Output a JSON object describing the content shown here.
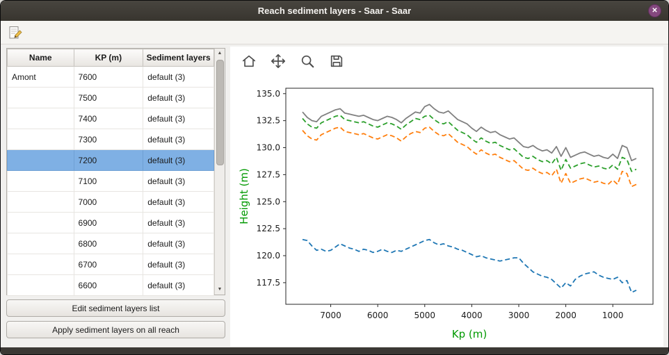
{
  "window": {
    "title": "Reach sediment layers - Saar - Saar",
    "close_glyph": "✕"
  },
  "app_toolbar": {
    "icons": [
      "edit-note-icon"
    ]
  },
  "table": {
    "columns": [
      "Name",
      "KP (m)",
      "Sediment layers"
    ],
    "rows": [
      {
        "name": "Amont",
        "kp": "7600",
        "layers": "default (3)",
        "selected": false
      },
      {
        "name": "",
        "kp": "7500",
        "layers": "default (3)",
        "selected": false
      },
      {
        "name": "",
        "kp": "7400",
        "layers": "default (3)",
        "selected": false
      },
      {
        "name": "",
        "kp": "7300",
        "layers": "default (3)",
        "selected": false
      },
      {
        "name": "",
        "kp": "7200",
        "layers": "default (3)",
        "selected": true
      },
      {
        "name": "",
        "kp": "7100",
        "layers": "default (3)",
        "selected": false
      },
      {
        "name": "",
        "kp": "7000",
        "layers": "default (3)",
        "selected": false
      },
      {
        "name": "",
        "kp": "6900",
        "layers": "default (3)",
        "selected": false
      },
      {
        "name": "",
        "kp": "6800",
        "layers": "default (3)",
        "selected": false
      },
      {
        "name": "",
        "kp": "6700",
        "layers": "default (3)",
        "selected": false
      },
      {
        "name": "",
        "kp": "6600",
        "layers": "default (3)",
        "selected": false
      }
    ]
  },
  "buttons": {
    "edit": "Edit sediment layers list",
    "apply": "Apply sediment layers on all reach"
  },
  "plot_toolbar": {
    "icons": [
      "home-icon",
      "pan-icon",
      "zoom-icon",
      "save-icon"
    ]
  },
  "chart_data": {
    "type": "line",
    "title": "",
    "xlabel": "Kp (m)",
    "ylabel": "Height (m)",
    "axis_label_color": "#009900",
    "tick_color": "#1a1a1a",
    "grid": false,
    "legend": false,
    "x_axis_reversed": true,
    "xlim": [
      7955,
      145
    ],
    "ylim": [
      115.5,
      135.5
    ],
    "xticks": [
      7000,
      6000,
      5000,
      4000,
      3000,
      2000,
      1000
    ],
    "yticks": [
      117.5,
      120.0,
      122.5,
      125.0,
      127.5,
      130.0,
      132.5,
      135.0
    ],
    "x": [
      7600,
      7500,
      7400,
      7300,
      7200,
      7100,
      7000,
      6900,
      6800,
      6700,
      6600,
      6500,
      6400,
      6300,
      6200,
      6100,
      6000,
      5900,
      5800,
      5700,
      5600,
      5500,
      5400,
      5300,
      5200,
      5100,
      5000,
      4900,
      4800,
      4700,
      4600,
      4500,
      4400,
      4300,
      4200,
      4100,
      4000,
      3900,
      3800,
      3700,
      3600,
      3500,
      3400,
      3300,
      3200,
      3100,
      3000,
      2900,
      2800,
      2700,
      2600,
      2500,
      2400,
      2300,
      2200,
      2100,
      2000,
      1900,
      1800,
      1700,
      1600,
      1500,
      1400,
      1300,
      1200,
      1100,
      1000,
      900,
      800,
      700,
      600,
      500
    ],
    "series": [
      {
        "name": "blue-dashed",
        "color": "#1f77b4",
        "dash": "dashed",
        "values": [
          121.5,
          121.4,
          120.9,
          120.5,
          120.6,
          120.4,
          120.5,
          120.8,
          121.1,
          120.9,
          120.7,
          120.6,
          120.4,
          120.6,
          120.5,
          120.3,
          120.4,
          120.6,
          120.4,
          120.3,
          120.5,
          120.4,
          120.6,
          120.8,
          121.0,
          121.2,
          121.4,
          121.5,
          121.2,
          121.0,
          121.1,
          120.9,
          120.8,
          120.6,
          120.5,
          120.3,
          120.1,
          119.9,
          120.0,
          119.8,
          119.7,
          119.6,
          119.5,
          119.6,
          119.7,
          119.8,
          119.8,
          119.3,
          118.9,
          118.5,
          118.3,
          118.1,
          118.0,
          117.8,
          117.4,
          117.0,
          117.5,
          117.2,
          117.8,
          118.1,
          118.3,
          118.4,
          118.5,
          118.2,
          118.0,
          117.9,
          117.8,
          118.0,
          117.5,
          117.7,
          116.6,
          116.8
        ]
      },
      {
        "name": "orange-dashed",
        "color": "#ff7f0e",
        "dash": "dashed",
        "values": [
          131.6,
          131.1,
          130.8,
          130.7,
          131.2,
          131.4,
          131.6,
          131.8,
          131.9,
          131.5,
          131.4,
          131.3,
          131.2,
          131.3,
          131.1,
          130.9,
          130.8,
          131.0,
          131.2,
          131.1,
          130.9,
          130.6,
          131.0,
          131.3,
          131.5,
          131.4,
          131.8,
          131.9,
          131.5,
          131.2,
          131.1,
          131.3,
          130.9,
          130.5,
          130.3,
          130.1,
          129.7,
          129.4,
          129.8,
          129.5,
          129.3,
          129.4,
          129.1,
          128.9,
          128.7,
          128.8,
          128.4,
          128.0,
          127.9,
          128.1,
          127.8,
          127.6,
          127.7,
          127.4,
          128.0,
          126.7,
          127.6,
          126.7,
          126.9,
          127.1,
          127.2,
          127.0,
          126.8,
          126.9,
          126.7,
          126.6,
          127.0,
          126.6,
          127.8,
          127.6,
          126.4,
          126.6
        ]
      },
      {
        "name": "green-dashed",
        "color": "#2ca02c",
        "dash": "dashed",
        "values": [
          132.7,
          132.2,
          131.9,
          131.8,
          132.3,
          132.5,
          132.7,
          132.9,
          133.0,
          132.6,
          132.5,
          132.4,
          132.3,
          132.4,
          132.2,
          132.0,
          131.9,
          132.1,
          132.3,
          132.2,
          132.0,
          131.7,
          132.1,
          132.4,
          132.7,
          132.6,
          132.9,
          133.0,
          132.6,
          132.3,
          132.2,
          132.4,
          132.0,
          131.6,
          131.4,
          131.2,
          130.8,
          130.5,
          130.9,
          130.6,
          130.4,
          130.5,
          130.2,
          130.0,
          129.8,
          129.9,
          129.5,
          129.1,
          129.0,
          129.2,
          128.9,
          128.7,
          128.8,
          128.5,
          129.1,
          127.9,
          128.9,
          128.1,
          128.3,
          128.5,
          128.6,
          128.4,
          128.2,
          128.3,
          128.1,
          128.0,
          128.4,
          128.0,
          129.1,
          128.9,
          127.8,
          128.0
        ]
      },
      {
        "name": "grey-solid",
        "color": "#808080",
        "dash": "solid",
        "values": [
          133.3,
          132.8,
          132.5,
          132.4,
          132.9,
          133.1,
          133.3,
          133.5,
          133.6,
          133.2,
          133.1,
          133.0,
          132.9,
          133.0,
          132.8,
          132.6,
          132.5,
          132.7,
          132.9,
          132.8,
          132.6,
          132.3,
          132.7,
          133.0,
          133.3,
          133.2,
          133.8,
          134.0,
          133.6,
          133.3,
          133.2,
          133.4,
          133.0,
          132.6,
          132.4,
          132.2,
          131.8,
          131.5,
          131.9,
          131.6,
          131.4,
          131.5,
          131.2,
          131.0,
          130.8,
          130.9,
          130.5,
          130.1,
          130.0,
          130.2,
          129.9,
          129.7,
          129.8,
          129.5,
          130.1,
          129.2,
          130.0,
          129.1,
          129.3,
          129.5,
          129.6,
          129.4,
          129.2,
          129.3,
          129.1,
          129.0,
          129.4,
          129.0,
          130.2,
          130.0,
          128.8,
          129.0
        ]
      }
    ]
  }
}
